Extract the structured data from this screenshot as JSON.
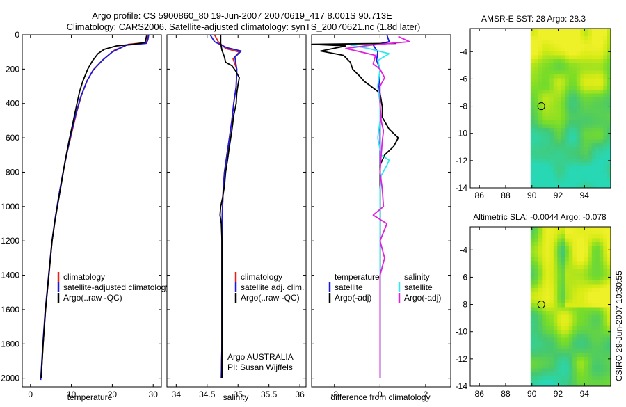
{
  "header": {
    "line1": "Argo profile: CS 5900860_80 19-Jun-2007 20070619_417 8.001S 90.713E",
    "line2": "Climatology: CARS2006. Satellite-adjusted climatology: synTS_20070621.nc (1.8d later)"
  },
  "colors": {
    "clim": "#e8201a",
    "sat": "#1a1ad8",
    "argo": "#000000",
    "sat_sal": "#30e8f0",
    "argo_sal": "#e020e0"
  },
  "chart_data": [
    {
      "type": "line",
      "name": "temperature",
      "xlabel": "temperature",
      "xlim": [
        -2,
        32
      ],
      "ylim": [
        2050,
        0
      ],
      "xticks": [
        0,
        10,
        20,
        30
      ],
      "yticks": [
        0,
        200,
        400,
        600,
        800,
        1000,
        1200,
        1400,
        1600,
        1800,
        2000
      ],
      "legend": {
        "position": "lower-right",
        "entries": [
          "climatology",
          "satellite-adjusted climatology",
          "Argo(..raw -QC)"
        ]
      },
      "series": [
        {
          "name": "climatology",
          "color": "clim",
          "points": [
            [
              28.6,
              0
            ],
            [
              28.5,
              30
            ],
            [
              28.3,
              45
            ],
            [
              24,
              55
            ],
            [
              20.5,
              90
            ],
            [
              18,
              140
            ],
            [
              15.5,
              200
            ],
            [
              14,
              260
            ],
            [
              12.5,
              350
            ],
            [
              11.3,
              450
            ],
            [
              10.2,
              560
            ],
            [
              9,
              680
            ],
            [
              8,
              800
            ],
            [
              7,
              930
            ],
            [
              6.2,
              1050
            ],
            [
              5.3,
              1200
            ],
            [
              4.5,
              1400
            ],
            [
              3.7,
              1600
            ],
            [
              3.1,
              1800
            ],
            [
              2.6,
              2000
            ]
          ]
        },
        {
          "name": "satellite-adjusted climatology",
          "color": "sat",
          "points": [
            [
              28.9,
              0
            ],
            [
              28.7,
              30
            ],
            [
              28.3,
              50
            ],
            [
              23.5,
              60
            ],
            [
              20,
              100
            ],
            [
              17.5,
              150
            ],
            [
              15.2,
              210
            ],
            [
              13.8,
              270
            ],
            [
              12.3,
              360
            ],
            [
              11.1,
              460
            ],
            [
              10,
              570
            ],
            [
              8.9,
              690
            ],
            [
              7.9,
              810
            ],
            [
              6.9,
              940
            ],
            [
              6.1,
              1060
            ],
            [
              5.2,
              1210
            ],
            [
              4.4,
              1410
            ],
            [
              3.6,
              1610
            ],
            [
              3,
              1810
            ],
            [
              2.5,
              2010
            ]
          ]
        },
        {
          "name": "Argo(..raw -QC)",
          "color": "argo",
          "points": [
            [
              28.4,
              5
            ],
            [
              28,
              45
            ],
            [
              25,
              55
            ],
            [
              21,
              65
            ],
            [
              18,
              85
            ],
            [
              16.5,
              110
            ],
            [
              15.2,
              150
            ],
            [
              14,
              200
            ],
            [
              12.8,
              270
            ],
            [
              12,
              330
            ],
            [
              11.2,
              420
            ],
            [
              10.3,
              520
            ],
            [
              9.4,
              620
            ],
            [
              8.5,
              730
            ],
            [
              7.6,
              860
            ],
            [
              6.8,
              970
            ],
            [
              6,
              1080
            ],
            [
              5.3,
              1200
            ],
            [
              4.5,
              1400
            ],
            [
              3.7,
              1600
            ],
            [
              3.1,
              1800
            ],
            [
              2.6,
              2000
            ]
          ]
        }
      ]
    },
    {
      "type": "line",
      "name": "salinity",
      "xlabel": "salinity",
      "xlim": [
        33.85,
        36.1
      ],
      "ylim": [
        2050,
        0
      ],
      "xticks": [
        34,
        34.5,
        35,
        35.5,
        36
      ],
      "yticks": [
        0,
        200,
        400,
        600,
        800,
        1000,
        1200,
        1400,
        1600,
        1800,
        2000
      ],
      "legend": {
        "position": "lower-right",
        "entries": [
          "climatology",
          "satellite adj. clim.",
          "Argo(..raw -QC)"
        ]
      },
      "annotation": [
        "Argo AUSTRALIA",
        "PI: Susan Wijffels"
      ],
      "series": [
        {
          "name": "climatology",
          "color": "clim",
          "points": [
            [
              34.62,
              0
            ],
            [
              34.68,
              40
            ],
            [
              34.8,
              80
            ],
            [
              35.02,
              100
            ],
            [
              34.92,
              140
            ],
            [
              34.98,
              200
            ],
            [
              34.97,
              300
            ],
            [
              34.93,
              400
            ],
            [
              34.9,
              500
            ],
            [
              34.86,
              600
            ],
            [
              34.82,
              700
            ],
            [
              34.78,
              800
            ],
            [
              34.76,
              900
            ],
            [
              34.75,
              1000
            ],
            [
              34.74,
              1100
            ],
            [
              34.74,
              1200
            ],
            [
              34.74,
              1400
            ],
            [
              34.74,
              1600
            ],
            [
              34.74,
              1800
            ],
            [
              34.73,
              2000
            ]
          ]
        },
        {
          "name": "satellite adj. clim.",
          "color": "sat",
          "points": [
            [
              34.55,
              0
            ],
            [
              34.62,
              40
            ],
            [
              34.82,
              75
            ],
            [
              35.05,
              95
            ],
            [
              34.95,
              130
            ],
            [
              34.98,
              200
            ],
            [
              34.97,
              300
            ],
            [
              34.93,
              400
            ],
            [
              34.9,
              500
            ],
            [
              34.86,
              600
            ],
            [
              34.82,
              700
            ],
            [
              34.78,
              800
            ],
            [
              34.76,
              900
            ],
            [
              34.75,
              1000
            ],
            [
              34.74,
              1100
            ],
            [
              34.74,
              1200
            ],
            [
              34.74,
              1400
            ],
            [
              34.74,
              1600
            ],
            [
              34.74,
              1800
            ],
            [
              34.73,
              2000
            ]
          ]
        },
        {
          "name": "Argo(..raw -QC)",
          "color": "argo",
          "points": [
            [
              34.72,
              0
            ],
            [
              34.72,
              50
            ],
            [
              34.74,
              90
            ],
            [
              34.78,
              130
            ],
            [
              34.8,
              160
            ],
            [
              34.9,
              180
            ],
            [
              34.96,
              210
            ],
            [
              35.02,
              250
            ],
            [
              35,
              290
            ],
            [
              34.98,
              340
            ],
            [
              34.97,
              400
            ],
            [
              34.93,
              470
            ],
            [
              34.9,
              560
            ],
            [
              34.86,
              650
            ],
            [
              34.83,
              730
            ],
            [
              34.8,
              800
            ],
            [
              34.78,
              880
            ],
            [
              34.75,
              950
            ],
            [
              34.72,
              1000
            ],
            [
              34.71,
              1050
            ],
            [
              34.73,
              1100
            ],
            [
              34.74,
              1200
            ],
            [
              34.74,
              1400
            ],
            [
              34.74,
              1600
            ],
            [
              34.74,
              1800
            ],
            [
              34.74,
              2000
            ]
          ]
        }
      ]
    },
    {
      "type": "line",
      "name": "difference",
      "xlabel": "difference from climatology",
      "xlim": [
        -3,
        3.1
      ],
      "ylim": [
        2050,
        0
      ],
      "xticks": [
        -2,
        0,
        2
      ],
      "yticks": [
        0,
        200,
        400,
        600,
        800,
        1000,
        1200,
        1400,
        1600,
        1800,
        2000
      ],
      "legend": {
        "position": "lower-middle",
        "columns": [
          {
            "title": "temperature",
            "entries": [
              "satellite",
              "Argo(-adj)"
            ]
          },
          {
            "title": "salinity",
            "entries": [
              "satellite",
              "Argo(-adj)"
            ]
          }
        ]
      },
      "series": [
        {
          "name": "temperature satellite",
          "color": "sat",
          "points": [
            [
              0.3,
              0
            ],
            [
              0.4,
              40
            ],
            [
              -0.3,
              60
            ],
            [
              -0.1,
              100
            ],
            [
              -0.15,
              150
            ],
            [
              0,
              200
            ],
            [
              -0.05,
              300
            ],
            [
              0,
              400
            ],
            [
              0,
              600
            ],
            [
              0,
              800
            ],
            [
              0,
              1000
            ],
            [
              0,
              1200
            ],
            [
              0,
              1400
            ],
            [
              0,
              1600
            ],
            [
              0,
              1800
            ],
            [
              0,
              2000
            ]
          ]
        },
        {
          "name": "temperature Argo(-adj)",
          "color": "argo",
          "points": [
            [
              0.7,
              50
            ],
            [
              -3,
              55
            ],
            [
              -1.5,
              65
            ],
            [
              -2.6,
              95
            ],
            [
              -1.6,
              120
            ],
            [
              -1.3,
              160
            ],
            [
              -1.2,
              200
            ],
            [
              -0.9,
              240
            ],
            [
              -0.7,
              270
            ],
            [
              -0.4,
              300
            ],
            [
              0,
              340
            ],
            [
              0.1,
              420
            ],
            [
              0.1,
              480
            ],
            [
              0.4,
              550
            ],
            [
              0.8,
              600
            ],
            [
              0.6,
              650
            ],
            [
              0.2,
              700
            ],
            [
              0,
              760
            ],
            [
              0,
              900
            ],
            [
              0,
              1200
            ],
            [
              0,
              1600
            ],
            [
              0,
              2000
            ]
          ]
        },
        {
          "name": "salinity satellite",
          "color": "sat_sal",
          "points": [
            [
              -1.3,
              60
            ],
            [
              -0.5,
              80
            ],
            [
              0.4,
              110
            ],
            [
              -0.1,
              150
            ],
            [
              0,
              200
            ],
            [
              -0.1,
              300
            ],
            [
              0,
              400
            ],
            [
              0,
              500
            ],
            [
              -0.1,
              600
            ],
            [
              0.05,
              700
            ],
            [
              0.4,
              730
            ],
            [
              0.3,
              760
            ],
            [
              0.05,
              820
            ],
            [
              0,
              900
            ],
            [
              0,
              1200
            ],
            [
              0,
              1600
            ],
            [
              0,
              2000
            ]
          ]
        },
        {
          "name": "salinity Argo(-adj)",
          "color": "argo_sal",
          "points": [
            [
              0.8,
              10
            ],
            [
              1.3,
              40
            ],
            [
              -0.4,
              60
            ],
            [
              -1.5,
              80
            ],
            [
              -0.2,
              120
            ],
            [
              -0.3,
              170
            ],
            [
              0,
              200
            ],
            [
              0.2,
              250
            ],
            [
              0,
              300
            ],
            [
              0,
              400
            ],
            [
              0.05,
              500
            ],
            [
              0.15,
              560
            ],
            [
              0.1,
              620
            ],
            [
              0.05,
              700
            ],
            [
              0,
              800
            ],
            [
              0.1,
              900
            ],
            [
              0.15,
              1000
            ],
            [
              -0.3,
              1050
            ],
            [
              0.3,
              1100
            ],
            [
              0,
              1200
            ],
            [
              0.2,
              1300
            ],
            [
              0,
              1400
            ],
            [
              0,
              1600
            ],
            [
              0,
              1800
            ],
            [
              0,
              2000
            ]
          ]
        }
      ]
    },
    {
      "type": "heatmap",
      "name": "sst-map",
      "title": "AMSR-E SST: 28 Argo: 28.3",
      "xlim": [
        85.3,
        96
      ],
      "ylim": [
        -14,
        -2.3
      ],
      "xticks": [
        86,
        88,
        90,
        92,
        94
      ],
      "yticks": [
        -4,
        -6,
        -8,
        -10,
        -12,
        -14
      ],
      "data_extent": [
        89.9,
        96
      ],
      "marker": [
        90.713,
        -8.001
      ]
    },
    {
      "type": "heatmap",
      "name": "sla-map",
      "title": "Altimetric SLA: -0.0044 Argo: -0.078",
      "xlim": [
        85.3,
        96
      ],
      "ylim": [
        -14,
        -2.3
      ],
      "xticks": [
        86,
        88,
        90,
        92,
        94
      ],
      "yticks": [
        -4,
        -6,
        -8,
        -10,
        -12,
        -14
      ],
      "data_extent": [
        89.9,
        96
      ],
      "marker": [
        90.713,
        -8.001
      ]
    }
  ],
  "footer": {
    "credit": "CSIRO 29-Jun-2007 10:30:55"
  }
}
